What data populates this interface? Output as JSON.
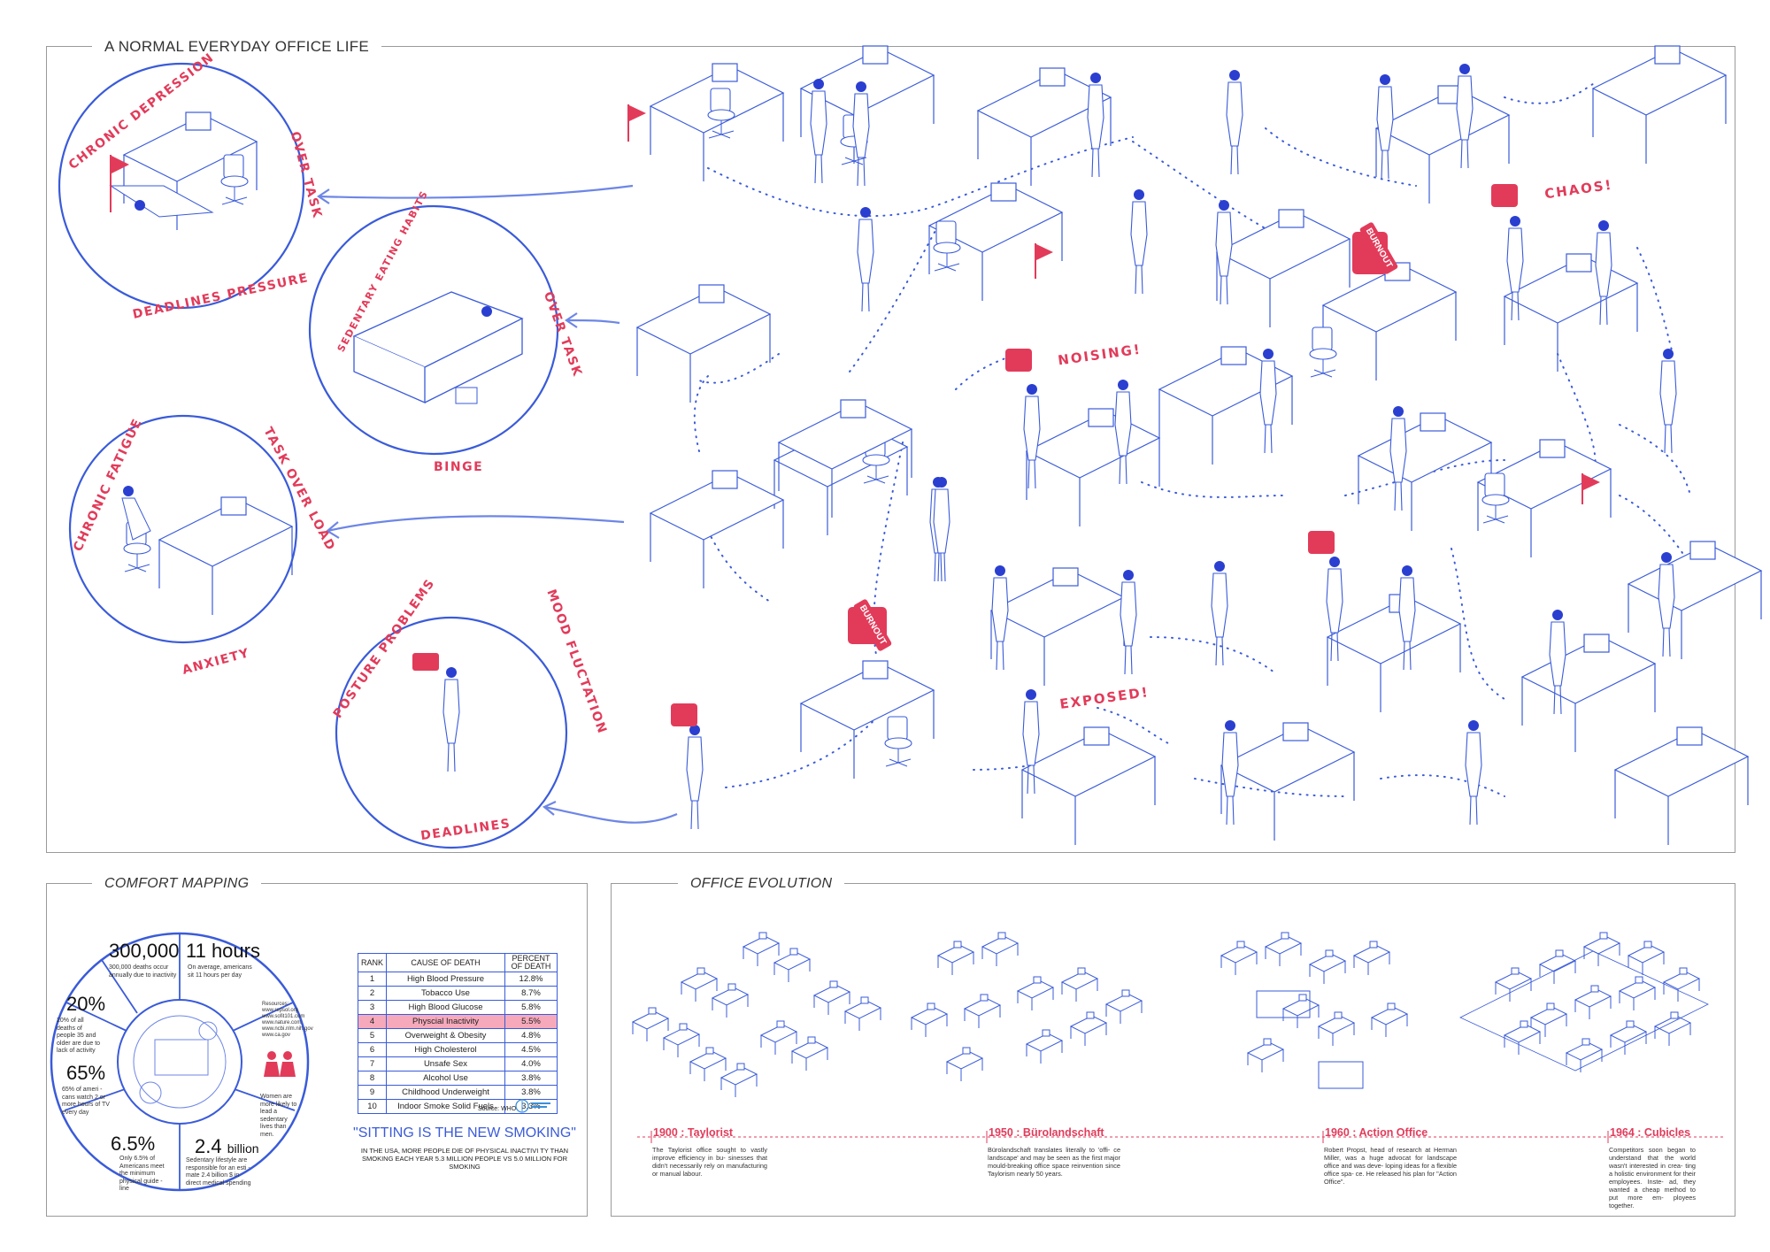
{
  "main": {
    "title": "A NORMAL EVERYDAY OFFICE LIFE",
    "vignettes": [
      {
        "id": "depression",
        "labels": {
          "top": "CHRONIC DEPRESSION",
          "right": "OVER TASK",
          "bottom": "DEADLINES PRESSURE"
        }
      },
      {
        "id": "binge",
        "labels": {
          "top": "SEDENTARY EATING HABITS",
          "right": "OVER TASK",
          "bottom": "BINGE"
        }
      },
      {
        "id": "fatigue",
        "labels": {
          "top": "CHRONIC FATIGUE",
          "right": "TASK OVER LOAD",
          "bottom": "ANXIETY"
        }
      },
      {
        "id": "posture",
        "labels": {
          "top": "POSTURE PROBLEMS",
          "right": "MOOD FLUCTATION",
          "bottom": "DEADLINES"
        }
      }
    ],
    "callouts": {
      "chaos": "CHAOS!",
      "noising": "NOISING!",
      "exposed": "EXPOSED!"
    },
    "burnout_tags": [
      "BURNOUT",
      "BURNOUT"
    ]
  },
  "comfort": {
    "title": "COMFORT MAPPING",
    "stats": [
      {
        "num": "300,000",
        "text": "300,000 deaths occur annually due to inactivity"
      },
      {
        "num": "11 hours",
        "text": "On average, americans sit 11 hours per day"
      },
      {
        "num": "20%",
        "text": "20% of all deaths of people 35 and older are due to lack of activity"
      },
      {
        "num": "65%",
        "text": "65% of ameri - cans watch 2 or more hours of TV every day"
      },
      {
        "num": "6.5%",
        "text": "Only 6.5% of Americans meet the minimum physical guide - line"
      },
      {
        "num": "2.4",
        "unit": "billion",
        "text": "Sedentary lifestyle are responsible for an esti - mate 2.4 billion $ in direct medical spending"
      },
      {
        "num": "",
        "text": "Women are more likely to lead a sedentary lives than men."
      }
    ],
    "resources": "Resources: www.repsol.org www.sofit101.com www.nature.com www.ncbi.nlm.nih.gov www.ca.gov",
    "table": {
      "headers": [
        "RANK",
        "CAUSE OF DEATH",
        "PERCENT OF DEATH"
      ],
      "rows": [
        [
          "1",
          "High Blood Pressure",
          "12.8%"
        ],
        [
          "2",
          "Tobacco Use",
          "8.7%"
        ],
        [
          "3",
          "High Blood Glucose",
          "5.8%"
        ],
        [
          "4",
          "Physcial Inactivity",
          "5.5%"
        ],
        [
          "5",
          "Overweight & Obesity",
          "4.8%"
        ],
        [
          "6",
          "High Cholesterol",
          "4.5%"
        ],
        [
          "7",
          "Unsafe Sex",
          "4.0%"
        ],
        [
          "8",
          "Alcohol Use",
          "3.8%"
        ],
        [
          "9",
          "Childhood Underweight",
          "3.8%"
        ],
        [
          "10",
          "Indoor Smoke Solid Fuels",
          "3.3%"
        ]
      ],
      "highlight_rank": "4",
      "source": "Source: WHO"
    },
    "quote": "\"SITTING IS THE NEW SMOKING\"",
    "quote_sub": "IN THE USA, MORE PEOPLE DIE OF PHYSICAL INACTIVI TY THAN SMOKING EACH YEAR 5.3 MILLION PEOPLE VS 5.0 MILLION FOR SMOKING"
  },
  "evolution": {
    "title": "OFFICE EVOLUTION",
    "eras": [
      {
        "label": "1900 : Taylorist",
        "text": "The Taylorist office sought to vastly improve efficiency in bu- sinesses that didn't necessarily rely on manufacturing or manual labour."
      },
      {
        "label": "1950 : Bürolandschaft",
        "text": "Bürolandschaft translates literally to 'offi- ce landscape' and may be seen as the first major mould-breaking office space reinvention since Taylorism nearly 50 years."
      },
      {
        "label": "1960 : Action Office",
        "text": "Robert Propst, head of research at Herman Miller, was a huge advocat for landscape office and was deve- loping ideas for a flexible office spa- ce. He released his plan for \"Action Office\"."
      },
      {
        "label": "1964 : Cubicles",
        "text": "Competitors soon began to understand that the world wasn't interested in crea- ting a holistic environment for their employees. Inste- ad, they wanted a cheap method to put more em- ployees together."
      }
    ]
  },
  "colors": {
    "blue": "#3a5bd9",
    "red": "#e23b5a",
    "pink": "#f5a9bb",
    "frame": "#9a9a9a"
  }
}
